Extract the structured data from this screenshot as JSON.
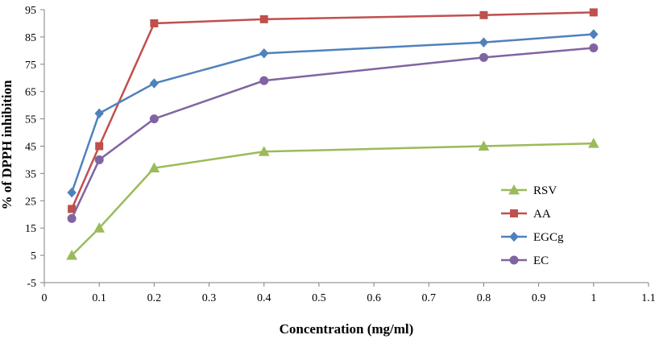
{
  "chart_data": {
    "type": "line",
    "xlabel": "Concentration (mg/ml)",
    "ylabel": "% of DPPH inhibition",
    "xlim": [
      0,
      1.1
    ],
    "ylim": [
      -5,
      95
    ],
    "xticks": [
      "0",
      "0.1",
      "0.2",
      "0.3",
      "0.4",
      "0.5",
      "0.6",
      "0.7",
      "0.8",
      "0.9",
      "1",
      "1.1"
    ],
    "yticks": [
      "-5",
      "5",
      "15",
      "25",
      "35",
      "45",
      "55",
      "65",
      "75",
      "85",
      "95"
    ],
    "grid": false,
    "legend_position": "right",
    "series": [
      {
        "name": "RSV",
        "color": "#9bbb59",
        "marker": "triangle",
        "x": [
          0.05,
          0.1,
          0.2,
          0.4,
          0.8,
          1.0
        ],
        "y": [
          5,
          15,
          37,
          43,
          45,
          46
        ]
      },
      {
        "name": "AA",
        "color": "#c0504d",
        "marker": "square",
        "x": [
          0.05,
          0.1,
          0.2,
          0.4,
          0.8,
          1.0
        ],
        "y": [
          22,
          45,
          90,
          91.5,
          93,
          94
        ]
      },
      {
        "name": "EGCg",
        "color": "#4f81bd",
        "marker": "diamond",
        "x": [
          0.05,
          0.1,
          0.2,
          0.4,
          0.8,
          1.0
        ],
        "y": [
          28,
          57,
          68,
          79,
          83,
          86
        ]
      },
      {
        "name": "EC",
        "color": "#8064a2",
        "marker": "circle",
        "x": [
          0.05,
          0.1,
          0.2,
          0.4,
          0.8,
          1.0
        ],
        "y": [
          18.5,
          40,
          55,
          69,
          77.5,
          81
        ]
      }
    ]
  }
}
